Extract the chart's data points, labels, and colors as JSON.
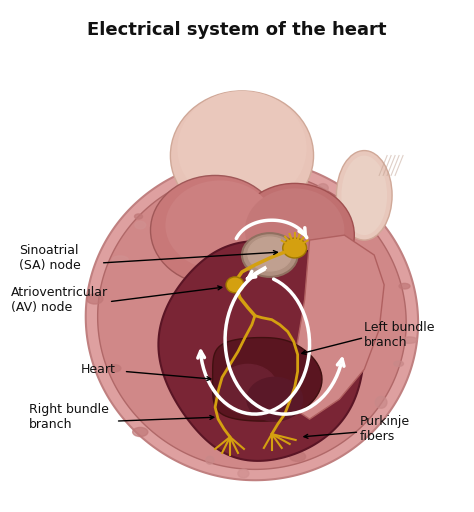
{
  "title": "Electrical system of the heart",
  "title_fontsize": 13,
  "title_fontweight": "bold",
  "background_color": "#ffffff",
  "labels": {
    "sa_node": "Sinoatrial\n(SA) node",
    "av_node": "Atrioventricular\n(AV) node",
    "heart": "Heart",
    "right_bundle": "Right bundle\nbranch",
    "left_bundle": "Left bundle\nbranch",
    "purkinje": "Purkinje\nfibers"
  },
  "heart_outer_color": "#d4848a",
  "heart_wall_color": "#c87070",
  "heart_inner_dark": "#6b2535",
  "heart_chamber_color": "#8b3040",
  "atria_color": "#c87878",
  "vessel_color": "#e8c8c0",
  "conduction_color": "#d4a010",
  "white_arrow_color": "#ffffff",
  "text_color": "#111111",
  "annotation_color": "#000000"
}
